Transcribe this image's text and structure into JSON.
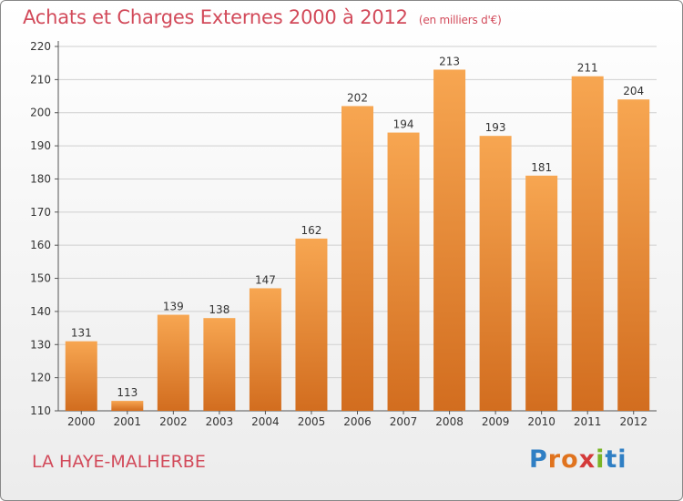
{
  "title": "Achats et Charges Externes 2000 à 2012",
  "unit": "(en milliers d'€)",
  "place": "LA HAYE-MALHERBE",
  "brand": {
    "name": "Proxiti",
    "letters": [
      "P",
      "r",
      "o",
      "x",
      "i",
      "ti"
    ]
  },
  "colors": {
    "bar": "#f0913c",
    "bar_dark": "#d57221",
    "text_accent": "#d24a5a"
  },
  "chart_data": {
    "type": "bar",
    "categories": [
      "2000",
      "2001",
      "2002",
      "2003",
      "2004",
      "2005",
      "2006",
      "2007",
      "2008",
      "2009",
      "2010",
      "2011",
      "2012"
    ],
    "values": [
      131,
      113,
      139,
      138,
      147,
      162,
      202,
      194,
      213,
      193,
      181,
      211,
      204
    ],
    "yticks": [
      110,
      120,
      130,
      140,
      150,
      160,
      170,
      180,
      190,
      200,
      210,
      220
    ],
    "ylim": [
      110,
      220
    ],
    "grid": true,
    "legend": false
  }
}
